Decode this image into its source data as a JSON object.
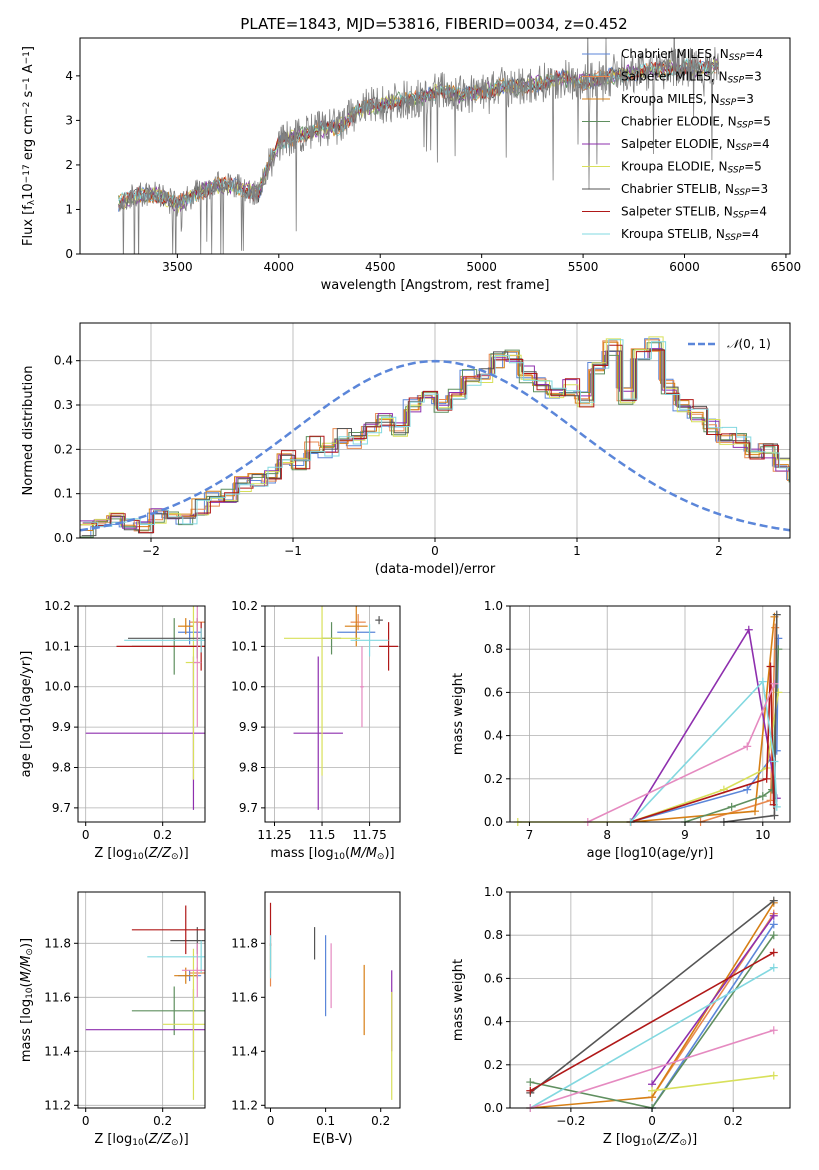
{
  "figure": {
    "title": "PLATE=1843, MJD=53816, FIBERID=0034, z=0.452"
  },
  "colors": {
    "Chabrier MILES": "#5b86d9",
    "Salpeter MILES": "#e8894f",
    "Kroupa MILES": "#d77f15",
    "Chabrier ELODIE": "#5f8f5f",
    "Salpeter ELODIE": "#8e2fae",
    "Kroupa ELODIE": "#d8e05a",
    "Chabrier STELIB": "#555555",
    "Salpeter STELIB": "#b01818",
    "Kroupa STELIB": "#82d8e0",
    "pink": "#e58ac0",
    "data": "#808080",
    "normal": "#5b86d9"
  },
  "chart_data": [
    {
      "id": "spectrum",
      "type": "line",
      "xlabel": "wavelength [Angstrom, rest frame]",
      "ylabel_parts": [
        "Flux [f",
        "λ",
        "10",
        "−17",
        " erg cm",
        "−2",
        " s",
        "−1",
        " A",
        "−1",
        "]"
      ],
      "xlim": [
        3020,
        6520
      ],
      "ylim": [
        0,
        4.85
      ],
      "xticks": [
        3500,
        4000,
        4500,
        5000,
        5500,
        6000,
        6500
      ],
      "yticks": [
        0,
        1,
        2,
        3,
        4
      ],
      "grid": false,
      "legend_position": "top-right",
      "legend": [
        {
          "name": "Chabrier MILES",
          "nssp": "4"
        },
        {
          "name": "Salpeter MILES",
          "nssp": "3"
        },
        {
          "name": "Kroupa MILES",
          "nssp": "3"
        },
        {
          "name": "Chabrier ELODIE",
          "nssp": "5"
        },
        {
          "name": "Salpeter ELODIE",
          "nssp": "4"
        },
        {
          "name": "Kroupa ELODIE",
          "nssp": "5"
        },
        {
          "name": "Chabrier STELIB",
          "nssp": "3"
        },
        {
          "name": "Salpeter STELIB",
          "nssp": "4"
        },
        {
          "name": "Kroupa STELIB",
          "nssp": "4"
        }
      ],
      "continuum": [
        [
          3210,
          1.15
        ],
        [
          3300,
          1.3
        ],
        [
          3400,
          1.35
        ],
        [
          3500,
          1.1
        ],
        [
          3600,
          1.4
        ],
        [
          3700,
          1.55
        ],
        [
          3800,
          1.5
        ],
        [
          3900,
          1.35
        ],
        [
          3950,
          2.0
        ],
        [
          4000,
          2.5
        ],
        [
          4100,
          2.65
        ],
        [
          4200,
          2.8
        ],
        [
          4300,
          2.85
        ],
        [
          4400,
          3.25
        ],
        [
          4500,
          3.35
        ],
        [
          4600,
          3.45
        ],
        [
          4700,
          3.5
        ],
        [
          4800,
          3.7
        ],
        [
          4900,
          3.55
        ],
        [
          5000,
          3.65
        ],
        [
          5100,
          3.75
        ],
        [
          5200,
          3.75
        ],
        [
          5300,
          3.85
        ],
        [
          5400,
          3.95
        ],
        [
          5500,
          3.85
        ],
        [
          5600,
          3.95
        ],
        [
          5700,
          4.05
        ],
        [
          5800,
          4.1
        ],
        [
          5900,
          4.15
        ],
        [
          6000,
          4.2
        ],
        [
          6100,
          4.15
        ],
        [
          6170,
          4.25
        ]
      ]
    },
    {
      "id": "residuals",
      "type": "bar",
      "xlabel": "(data-model)/error",
      "ylabel": "Normed distribution",
      "xlim": [
        -2.5,
        2.5
      ],
      "ylim": [
        0,
        0.485
      ],
      "xticks": [
        -2,
        -1,
        0,
        1,
        2
      ],
      "yticks": [
        0.0,
        0.1,
        0.2,
        0.3,
        0.4
      ],
      "grid": true,
      "legend_position": "top-right",
      "normal_label_prefix": "𝒩",
      "normal_label_args": "(0, 1)",
      "bin_edges_start": -2.5,
      "bin_width": 0.1,
      "hist_values": [
        0.02,
        0.03,
        0.04,
        0.03,
        0.03,
        0.05,
        0.06,
        0.05,
        0.07,
        0.09,
        0.1,
        0.12,
        0.13,
        0.14,
        0.18,
        0.16,
        0.21,
        0.2,
        0.23,
        0.22,
        0.25,
        0.27,
        0.24,
        0.3,
        0.32,
        0.3,
        0.33,
        0.36,
        0.37,
        0.4,
        0.41,
        0.37,
        0.35,
        0.33,
        0.34,
        0.31,
        0.38,
        0.43,
        0.32,
        0.42,
        0.44,
        0.34,
        0.3,
        0.28,
        0.25,
        0.23,
        0.22,
        0.19,
        0.2,
        0.17,
        0.14,
        0.16,
        0.13,
        0.12,
        0.11,
        0.1,
        0.09,
        0.08,
        0.09,
        0.08,
        0.08,
        0.07,
        0.06,
        0.05,
        0.05,
        0.04,
        0.04,
        0.04,
        0.03,
        0.03,
        0.03,
        0.02,
        0.02
      ]
    },
    {
      "id": "age_vs_Z",
      "type": "scatter",
      "xlabel_parts": [
        "Z [log",
        "10",
        "(",
        "Z/Z",
        "⊙",
        ")]"
      ],
      "ylabel_parts": [
        "age  [log",
        "10",
        "(",
        "age/yr",
        ")]"
      ],
      "xlim": [
        -0.02,
        0.31
      ],
      "ylim": [
        9.665,
        10.2
      ],
      "xticks": [
        0.0,
        0.2
      ],
      "yticks": [
        9.7,
        9.8,
        9.9,
        10.0,
        10.1,
        10.2
      ],
      "grid": true,
      "points": [
        {
          "model": "Chabrier MILES",
          "x": 0.27,
          "xerr": 0.03,
          "y": 10.135,
          "yerr": 0.03
        },
        {
          "model": "Salpeter MILES",
          "x": 0.29,
          "xerr": 0.02,
          "y": 10.16,
          "yerr": 0.01
        },
        {
          "model": "Kroupa MILES",
          "x": 0.26,
          "xerr": 0.02,
          "y": 10.15,
          "yerr": 0.02
        },
        {
          "model": "Chabrier ELODIE",
          "x": 0.23,
          "xerr": 0.11,
          "y": 10.1,
          "yerr": 0.07
        },
        {
          "model": "Salpeter ELODIE",
          "x": 0.28,
          "xerr": 0.28,
          "y": 9.885,
          "yerr": 0.19
        },
        {
          "model": "Kroupa ELODIE",
          "x": 0.28,
          "xerr": 0.02,
          "y": 10.06,
          "yerr": 0.29
        },
        {
          "model": "Chabrier STELIB",
          "x": 0.29,
          "xerr": 0.18,
          "y": 10.12,
          "yerr": 0.05
        },
        {
          "model": "Salpeter STELIB",
          "x": 0.3,
          "xerr": 0.22,
          "y": 10.1,
          "yerr": 0.06
        },
        {
          "model": "Kroupa STELIB",
          "x": 0.3,
          "xerr": 0.2,
          "y": 10.115,
          "yerr": 0.03
        },
        {
          "model": "pink",
          "x": 0.29,
          "xerr": 0.01,
          "y": 10.06,
          "yerr": 0.16
        }
      ]
    },
    {
      "id": "age_vs_mass",
      "type": "scatter",
      "xlabel_parts": [
        "mass [log",
        "10",
        "(",
        "M/M",
        "⊙",
        ")]"
      ],
      "xlim": [
        11.2,
        11.91
      ],
      "ylim": [
        9.665,
        10.2
      ],
      "xticks": [
        11.25,
        11.5,
        11.75
      ],
      "yticks": [
        9.7,
        9.8,
        9.9,
        10.0,
        10.1,
        10.2
      ],
      "grid": true,
      "points": [
        {
          "model": "Chabrier MILES",
          "x": 11.68,
          "xerr": 0.1,
          "y": 10.135,
          "yerr": 0.02
        },
        {
          "model": "Salpeter MILES",
          "x": 11.69,
          "xerr": 0.04,
          "y": 10.16,
          "yerr": 0.02
        },
        {
          "model": "Kroupa MILES",
          "x": 11.68,
          "xerr": 0.06,
          "y": 10.15,
          "yerr": 0.05
        },
        {
          "model": "Chabrier ELODIE",
          "x": 11.55,
          "xerr": 0.05,
          "y": 10.12,
          "yerr": 0.04
        },
        {
          "model": "Salpeter ELODIE",
          "x": 11.48,
          "xerr": 0.13,
          "y": 9.885,
          "yerr": 0.19
        },
        {
          "model": "Kroupa ELODIE",
          "x": 11.5,
          "xerr": 0.2,
          "y": 10.12,
          "yerr": 0.34
        },
        {
          "model": "Chabrier STELIB",
          "x": 11.8,
          "xerr": 0.02,
          "y": 10.165,
          "yerr": 0.01
        },
        {
          "model": "Salpeter STELIB",
          "x": 11.85,
          "xerr": 0.05,
          "y": 10.1,
          "yerr": 0.06
        },
        {
          "model": "Kroupa STELIB",
          "x": 11.75,
          "xerr": 0.1,
          "y": 10.115,
          "yerr": 0.04
        },
        {
          "model": "pink",
          "x": 11.71,
          "xerr": 0.01,
          "y": 10.0,
          "yerr": 0.1
        }
      ]
    },
    {
      "id": "mw_vs_age",
      "type": "line",
      "xlabel_parts": [
        "age  [log",
        "10",
        "(",
        "age/yr",
        ")]"
      ],
      "ylabel": "mass weight",
      "xlim": [
        6.75,
        10.35
      ],
      "ylim": [
        0,
        1.0
      ],
      "xticks": [
        7,
        8,
        9,
        10
      ],
      "yticks": [
        0.0,
        0.2,
        0.4,
        0.6,
        0.8,
        1.0
      ],
      "grid": true,
      "series": [
        {
          "model": "Chabrier MILES",
          "x": [
            8.3,
            9.8,
            10.18,
            10.2
          ],
          "y": [
            0.0,
            0.15,
            0.33,
            0.85
          ]
        },
        {
          "model": "Salpeter MILES",
          "x": [
            9.2,
            10.1,
            10.16
          ],
          "y": [
            0.0,
            0.1,
            0.9
          ]
        },
        {
          "model": "Kroupa MILES",
          "x": [
            8.3,
            9.9,
            10.15
          ],
          "y": [
            0.0,
            0.05,
            0.95
          ]
        },
        {
          "model": "Chabrier ELODIE",
          "x": [
            9.0,
            9.6,
            10.0,
            10.12,
            10.2
          ],
          "y": [
            0.0,
            0.07,
            0.12,
            0.15,
            0.8
          ]
        },
        {
          "model": "Salpeter ELODIE",
          "x": [
            8.3,
            9.82,
            10.18
          ],
          "y": [
            0.0,
            0.89,
            0.11
          ]
        },
        {
          "model": "Kroupa ELODIE",
          "x": [
            6.85,
            8.3,
            9.5,
            10.05,
            10.2
          ],
          "y": [
            0.0,
            0.0,
            0.15,
            0.25,
            0.6
          ]
        },
        {
          "model": "Chabrier STELIB",
          "x": [
            9.5,
            10.15,
            10.18
          ],
          "y": [
            0.0,
            0.03,
            0.96
          ]
        },
        {
          "model": "Salpeter STELIB",
          "x": [
            8.3,
            10.05,
            10.1,
            10.14
          ],
          "y": [
            0.0,
            0.2,
            0.72,
            0.08
          ]
        },
        {
          "model": "Kroupa STELIB",
          "x": [
            8.3,
            10.0,
            10.15,
            10.18
          ],
          "y": [
            0.0,
            0.65,
            0.28,
            0.07
          ]
        },
        {
          "model": "pink",
          "x": [
            7.75,
            9.8,
            10.15
          ],
          "y": [
            0.0,
            0.35,
            0.64
          ]
        }
      ]
    },
    {
      "id": "mass_vs_Z",
      "type": "scatter",
      "xlabel_parts": [
        "Z [log",
        "10",
        "(",
        "Z/Z",
        "⊙",
        ")]"
      ],
      "ylabel_parts": [
        "mass [log",
        "10",
        "(",
        "M/M",
        "⊙",
        ")]"
      ],
      "xlim": [
        -0.02,
        0.31
      ],
      "ylim": [
        11.19,
        11.99
      ],
      "xticks": [
        0.0,
        0.2
      ],
      "yticks": [
        11.2,
        11.4,
        11.6,
        11.8
      ],
      "grid": true,
      "points": [
        {
          "model": "Chabrier MILES",
          "x": 0.27,
          "xerr": 0.03,
          "y": 11.68,
          "yerr": 0.02
        },
        {
          "model": "Salpeter MILES",
          "x": 0.29,
          "xerr": 0.02,
          "y": 11.69,
          "yerr": 0.02
        },
        {
          "model": "Kroupa MILES",
          "x": 0.26,
          "xerr": 0.03,
          "y": 11.68,
          "yerr": 0.03
        },
        {
          "model": "Chabrier ELODIE",
          "x": 0.23,
          "xerr": 0.11,
          "y": 11.55,
          "yerr": 0.09
        },
        {
          "model": "Salpeter ELODIE",
          "x": 0.28,
          "xerr": 0.28,
          "y": 11.48,
          "yerr": 0.15
        },
        {
          "model": "Kroupa ELODIE",
          "x": 0.28,
          "xerr": 0.08,
          "y": 11.5,
          "yerr": 0.28
        },
        {
          "model": "Chabrier STELIB",
          "x": 0.29,
          "xerr": 0.07,
          "y": 11.81,
          "yerr": 0.05
        },
        {
          "model": "Salpeter STELIB",
          "x": 0.26,
          "xerr": 0.14,
          "y": 11.85,
          "yerr": 0.09
        },
        {
          "model": "Kroupa STELIB",
          "x": 0.3,
          "xerr": 0.14,
          "y": 11.75,
          "yerr": 0.06
        },
        {
          "model": "pink",
          "x": 0.29,
          "xerr": 0.04,
          "y": 11.7,
          "yerr": 0.1
        }
      ]
    },
    {
      "id": "mass_vs_ebv",
      "type": "scatter",
      "xlabel": "E(B-V)",
      "xlim": [
        -0.01,
        0.235
      ],
      "ylim": [
        11.19,
        11.99
      ],
      "xticks": [
        0.0,
        0.1,
        0.2
      ],
      "yticks": [
        11.2,
        11.4,
        11.6,
        11.8
      ],
      "grid": false,
      "points": [
        {
          "model": "Chabrier MILES",
          "x": 0.1,
          "y": 11.68,
          "yerr": 0.15
        },
        {
          "model": "Salpeter MILES",
          "x": 0.0,
          "y": 11.72,
          "yerr": 0.08
        },
        {
          "model": "Kroupa MILES",
          "x": 0.17,
          "y": 11.59,
          "yerr": 0.13
        },
        {
          "model": "Chabrier ELODIE",
          "x": 0.0,
          "y": 11.75,
          "yerr": 0.05
        },
        {
          "model": "Salpeter ELODIE",
          "x": 0.22,
          "y": 11.55,
          "yerr": 0.15
        },
        {
          "model": "Kroupa ELODIE",
          "x": 0.22,
          "y": 11.42,
          "yerr": 0.2
        },
        {
          "model": "Chabrier STELIB",
          "x": 0.08,
          "y": 11.8,
          "yerr": 0.06
        },
        {
          "model": "Salpeter STELIB",
          "x": 0.0,
          "y": 11.87,
          "yerr": 0.08
        },
        {
          "model": "Kroupa STELIB",
          "x": 0.0,
          "y": 11.75,
          "yerr": 0.08
        },
        {
          "model": "pink",
          "x": 0.11,
          "y": 11.68,
          "yerr": 0.12
        }
      ]
    },
    {
      "id": "mw_vs_Z",
      "type": "line",
      "xlabel_parts": [
        "Z [log",
        "10",
        "(",
        "Z/Z",
        "⊙",
        ")]"
      ],
      "ylabel": "mass weight",
      "xlim": [
        -0.35,
        0.34
      ],
      "ylim": [
        0,
        1.0
      ],
      "xticks": [
        -0.2,
        0.0,
        0.2
      ],
      "yticks": [
        0.0,
        0.2,
        0.4,
        0.6,
        0.8,
        1.0
      ],
      "grid": true,
      "series": [
        {
          "model": "Chabrier MILES",
          "x": [
            0.0,
            0.3
          ],
          "y": [
            0.0,
            0.85
          ]
        },
        {
          "model": "Salpeter MILES",
          "x": [
            0.0,
            0.3
          ],
          "y": [
            0.05,
            0.9
          ]
        },
        {
          "model": "Kroupa MILES",
          "x": [
            -0.3,
            0.0,
            0.3
          ],
          "y": [
            0.0,
            0.05,
            0.95
          ]
        },
        {
          "model": "Chabrier ELODIE",
          "x": [
            -0.3,
            0.0,
            0.3
          ],
          "y": [
            0.12,
            0.0,
            0.8
          ]
        },
        {
          "model": "Salpeter ELODIE",
          "x": [
            0.0,
            0.3
          ],
          "y": [
            0.11,
            0.89
          ]
        },
        {
          "model": "Kroupa ELODIE",
          "x": [
            0.0,
            0.3
          ],
          "y": [
            0.08,
            0.15
          ]
        },
        {
          "model": "Chabrier STELIB",
          "x": [
            -0.3,
            0.3
          ],
          "y": [
            0.07,
            0.96
          ]
        },
        {
          "model": "Salpeter STELIB",
          "x": [
            -0.3,
            0.3
          ],
          "y": [
            0.08,
            0.72
          ]
        },
        {
          "model": "Kroupa STELIB",
          "x": [
            -0.3,
            0.3
          ],
          "y": [
            0.0,
            0.65
          ]
        },
        {
          "model": "pink",
          "x": [
            -0.3,
            0.3
          ],
          "y": [
            0.0,
            0.36
          ]
        }
      ]
    }
  ]
}
